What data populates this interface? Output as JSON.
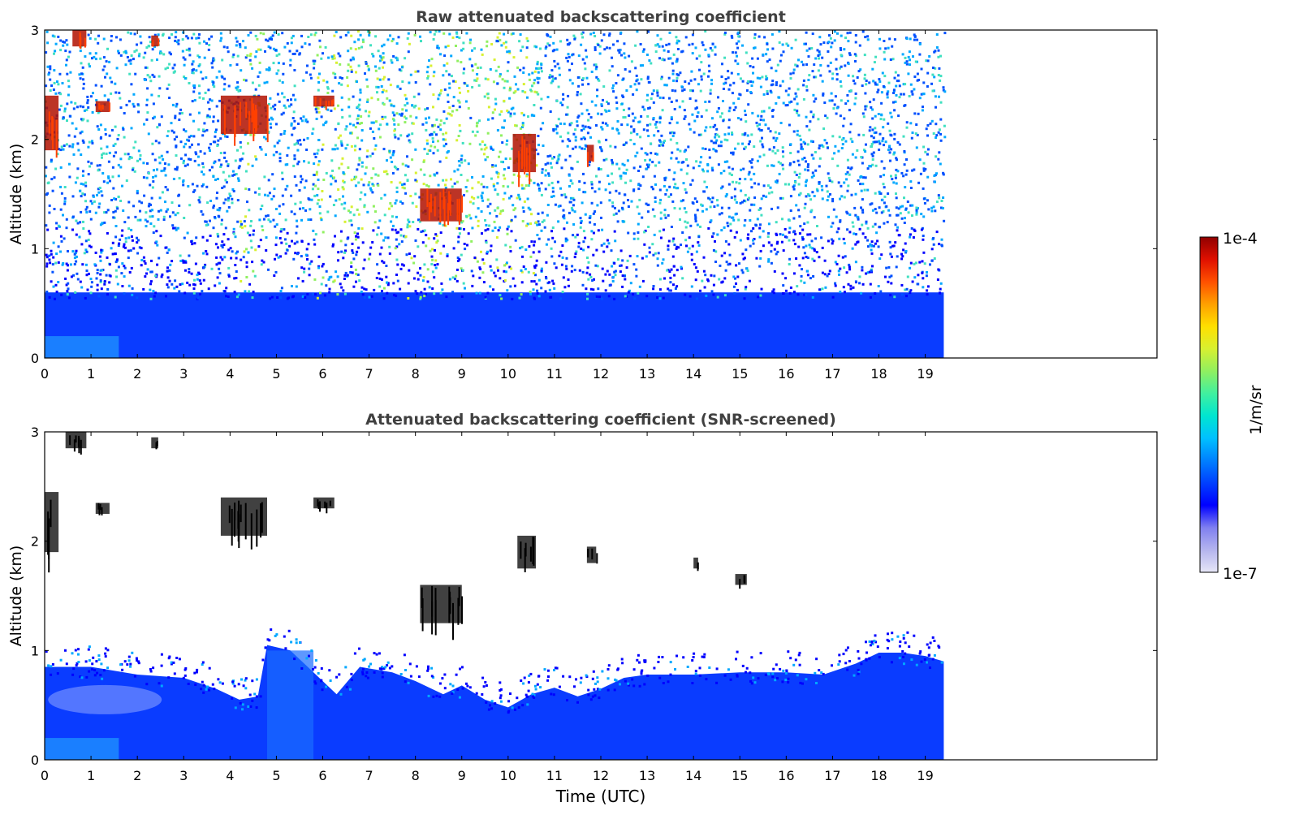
{
  "colorbar": {
    "max_label": "1e-4",
    "min_label": "1e-7",
    "unit_label": "1/m/sr",
    "scale": "log",
    "range": [
      1e-07,
      0.0001
    ],
    "colors": [
      "#e6e6f7",
      "#b4b4ee",
      "#8080f0",
      "#0000ff",
      "#0040ff",
      "#0080ff",
      "#00c0ff",
      "#00e6d0",
      "#40f0a0",
      "#90f060",
      "#d8f030",
      "#ffe000",
      "#ffa000",
      "#ff5000",
      "#e01000",
      "#900000"
    ]
  },
  "chart_data": [
    {
      "type": "heatmap",
      "title": "Raw attenuated backscattering coefficient",
      "xlabel": "",
      "ylabel": "Altitude (km)",
      "xlim": [
        0,
        24
      ],
      "ylim": [
        0,
        3
      ],
      "data_extent_x": [
        0,
        19.4
      ],
      "xticks": [
        0,
        1,
        2,
        3,
        4,
        5,
        6,
        7,
        8,
        9,
        10,
        11,
        12,
        13,
        14,
        15,
        16,
        17,
        18,
        19
      ],
      "yticks": [
        0,
        1,
        2,
        3
      ],
      "features": [
        {
          "kind": "aerosol_layer",
          "x": [
            0,
            19.4
          ],
          "y": [
            0,
            0.6
          ],
          "level": "blue"
        },
        {
          "kind": "noise",
          "x": [
            0,
            19.4
          ],
          "y": [
            0.6,
            3
          ],
          "level": "blue-cyan speckle"
        },
        {
          "kind": "enhanced_noise",
          "x": [
            4.2,
            4.7
          ],
          "y": [
            0.3,
            3
          ],
          "level": "green-yellow"
        },
        {
          "kind": "enhanced_noise",
          "x": [
            5.8,
            10.6
          ],
          "y": [
            0.4,
            3
          ],
          "level": "green-yellow"
        },
        {
          "kind": "cloud",
          "x": [
            0,
            0.3
          ],
          "y": [
            1.9,
            2.4
          ]
        },
        {
          "kind": "cloud",
          "x": [
            0.6,
            0.9
          ],
          "y": [
            2.85,
            3
          ]
        },
        {
          "kind": "cloud",
          "x": [
            1.1,
            1.4
          ],
          "y": [
            2.25,
            2.35
          ]
        },
        {
          "kind": "cloud",
          "x": [
            2.3,
            2.45
          ],
          "y": [
            2.85,
            2.95
          ]
        },
        {
          "kind": "cloud",
          "x": [
            3.8,
            4.8
          ],
          "y": [
            2.05,
            2.4
          ]
        },
        {
          "kind": "cloud",
          "x": [
            5.8,
            6.25
          ],
          "y": [
            2.3,
            2.4
          ]
        },
        {
          "kind": "cloud",
          "x": [
            8.1,
            9.0
          ],
          "y": [
            1.25,
            1.55
          ]
        },
        {
          "kind": "cloud",
          "x": [
            10.1,
            10.6
          ],
          "y": [
            1.7,
            2.05
          ]
        },
        {
          "kind": "cloud",
          "x": [
            11.7,
            11.85
          ],
          "y": [
            1.8,
            1.95
          ]
        }
      ]
    },
    {
      "type": "heatmap",
      "title": "Attenuated backscattering coefficient (SNR-screened)",
      "xlabel": "Time (UTC)",
      "ylabel": "Altitude (km)",
      "xlim": [
        0,
        24
      ],
      "ylim": [
        0,
        3
      ],
      "data_extent_x": [
        0,
        19.4
      ],
      "xticks": [
        0,
        1,
        2,
        3,
        4,
        5,
        6,
        7,
        8,
        9,
        10,
        11,
        12,
        13,
        14,
        15,
        16,
        17,
        18,
        19
      ],
      "yticks": [
        0,
        1,
        2,
        3
      ],
      "boundary_layer_top": {
        "time": [
          0,
          1,
          2,
          3,
          3.7,
          4.2,
          4.6,
          4.8,
          5.3,
          5.8,
          6.3,
          6.8,
          7.5,
          8.0,
          8.6,
          9.0,
          9.5,
          10.0,
          10.5,
          11.0,
          11.5,
          12.0,
          12.5,
          13,
          14,
          15,
          16,
          16.8,
          17.5,
          18.0,
          18.5,
          19.0,
          19.4
        ],
        "altitude": [
          0.85,
          0.85,
          0.78,
          0.75,
          0.65,
          0.55,
          0.58,
          1.05,
          1.0,
          0.8,
          0.6,
          0.85,
          0.8,
          0.72,
          0.6,
          0.68,
          0.55,
          0.48,
          0.6,
          0.66,
          0.58,
          0.65,
          0.75,
          0.78,
          0.78,
          0.8,
          0.8,
          0.78,
          0.88,
          0.98,
          0.98,
          0.95,
          0.9
        ]
      },
      "features": [
        {
          "kind": "cloud",
          "x": [
            0,
            0.3
          ],
          "y": [
            1.9,
            2.45
          ]
        },
        {
          "kind": "cloud",
          "x": [
            0.45,
            0.9
          ],
          "y": [
            2.85,
            3
          ]
        },
        {
          "kind": "cloud",
          "x": [
            1.1,
            1.4
          ],
          "y": [
            2.25,
            2.35
          ]
        },
        {
          "kind": "cloud",
          "x": [
            2.3,
            2.45
          ],
          "y": [
            2.85,
            2.95
          ]
        },
        {
          "kind": "cloud",
          "x": [
            3.8,
            4.8
          ],
          "y": [
            2.05,
            2.4
          ]
        },
        {
          "kind": "cloud",
          "x": [
            5.8,
            6.25
          ],
          "y": [
            2.3,
            2.4
          ]
        },
        {
          "kind": "cloud",
          "x": [
            8.1,
            9.0
          ],
          "y": [
            1.25,
            1.6
          ]
        },
        {
          "kind": "cloud",
          "x": [
            10.2,
            10.6
          ],
          "y": [
            1.75,
            2.05
          ]
        },
        {
          "kind": "cloud",
          "x": [
            11.7,
            11.9
          ],
          "y": [
            1.8,
            1.95
          ]
        },
        {
          "kind": "cloud",
          "x": [
            14.0,
            14.1
          ],
          "y": [
            1.75,
            1.85
          ]
        },
        {
          "kind": "cloud",
          "x": [
            14.9,
            15.15
          ],
          "y": [
            1.6,
            1.7
          ]
        }
      ]
    }
  ]
}
